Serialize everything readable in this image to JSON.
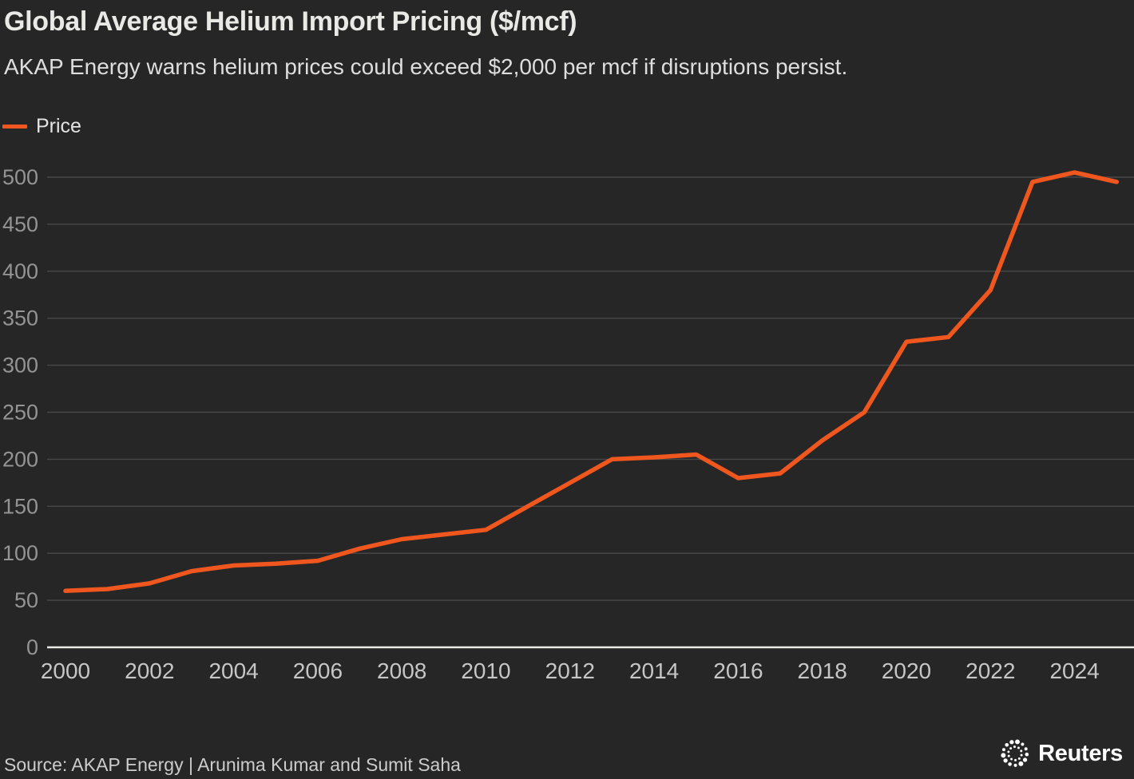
{
  "header": {
    "title": "Global Average Helium Import Pricing ($/mcf)",
    "subtitle": "AKAP Energy warns helium prices could exceed $2,000 per mcf if disruptions persist."
  },
  "legend": {
    "label": "Price"
  },
  "footer": {
    "source": "Source: AKAP Energy | Arunima Kumar and Sumit Saha",
    "brand": "Reuters"
  },
  "colors": {
    "background": "#262626",
    "line": "#f0571f",
    "grid": "#484848",
    "axis": "#e9e9e6",
    "y_tick_label": "#949494",
    "x_tick_label": "#c6c6c6",
    "title": "#e9e9e6",
    "subtitle": "#dedede",
    "source": "#cccccc",
    "logo": "#ffffff"
  },
  "chart_data": {
    "type": "line",
    "title": "Global Average Helium Import Pricing ($/mcf)",
    "xlabel": "",
    "ylabel": "",
    "x": [
      2000,
      2001,
      2002,
      2003,
      2004,
      2005,
      2006,
      2007,
      2008,
      2009,
      2010,
      2011,
      2012,
      2013,
      2014,
      2015,
      2016,
      2017,
      2018,
      2019,
      2020,
      2021,
      2022,
      2023,
      2024,
      2025
    ],
    "series": [
      {
        "name": "Price",
        "color": "#f0571f",
        "values": [
          60,
          62,
          68,
          81,
          87,
          89,
          92,
          105,
          115,
          120,
          125,
          150,
          175,
          200,
          202,
          205,
          180,
          185,
          220,
          250,
          325,
          330,
          380,
          495,
          505,
          495
        ]
      }
    ],
    "xticks": [
      2000,
      2002,
      2004,
      2006,
      2008,
      2010,
      2012,
      2014,
      2016,
      2018,
      2020,
      2022,
      2024
    ],
    "yticks": [
      0,
      50,
      100,
      150,
      200,
      250,
      300,
      350,
      400,
      450,
      500
    ],
    "xlim": [
      2000,
      2025
    ],
    "ylim": [
      0,
      500
    ],
    "grid": true,
    "legend_position": "top-left"
  }
}
